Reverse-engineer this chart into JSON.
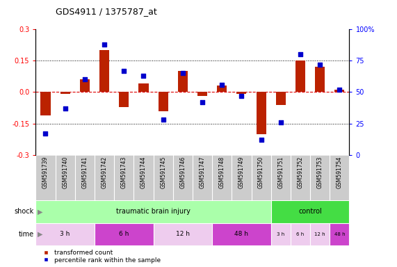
{
  "title": "GDS4911 / 1375787_at",
  "samples": [
    "GSM591739",
    "GSM591740",
    "GSM591741",
    "GSM591742",
    "GSM591743",
    "GSM591744",
    "GSM591745",
    "GSM591746",
    "GSM591747",
    "GSM591748",
    "GSM591749",
    "GSM591750",
    "GSM591751",
    "GSM591752",
    "GSM591753",
    "GSM591754"
  ],
  "transformed_count": [
    -0.11,
    -0.01,
    0.06,
    0.2,
    -0.07,
    0.04,
    -0.09,
    0.1,
    -0.02,
    0.03,
    -0.01,
    -0.2,
    -0.06,
    0.15,
    0.12,
    0.01
  ],
  "percentile_rank": [
    17,
    37,
    60,
    88,
    67,
    63,
    28,
    65,
    42,
    56,
    47,
    12,
    26,
    80,
    72,
    52
  ],
  "ylim_left": [
    -0.3,
    0.3
  ],
  "ylim_right": [
    0,
    100
  ],
  "yticks_left": [
    -0.3,
    -0.15,
    0.0,
    0.15,
    0.3
  ],
  "yticks_right": [
    0,
    25,
    50,
    75,
    100
  ],
  "bar_color": "#BB2200",
  "dot_color": "#0000CC",
  "bg_color": "#FFFFFF",
  "hline_color": "#DD0000",
  "dotline_color": "#000000",
  "shock_label": "shock",
  "time_label": "time",
  "shock_color_tbi": "#AAFFAA",
  "shock_color_ctrl": "#44DD44",
  "time_color_light": "#EECCEE",
  "time_color_dark": "#CC44CC",
  "sample_bg": "#CCCCCC",
  "legend_items": [
    {
      "label": "transformed count",
      "color": "#BB2200"
    },
    {
      "label": "percentile rank within the sample",
      "color": "#0000CC"
    }
  ]
}
